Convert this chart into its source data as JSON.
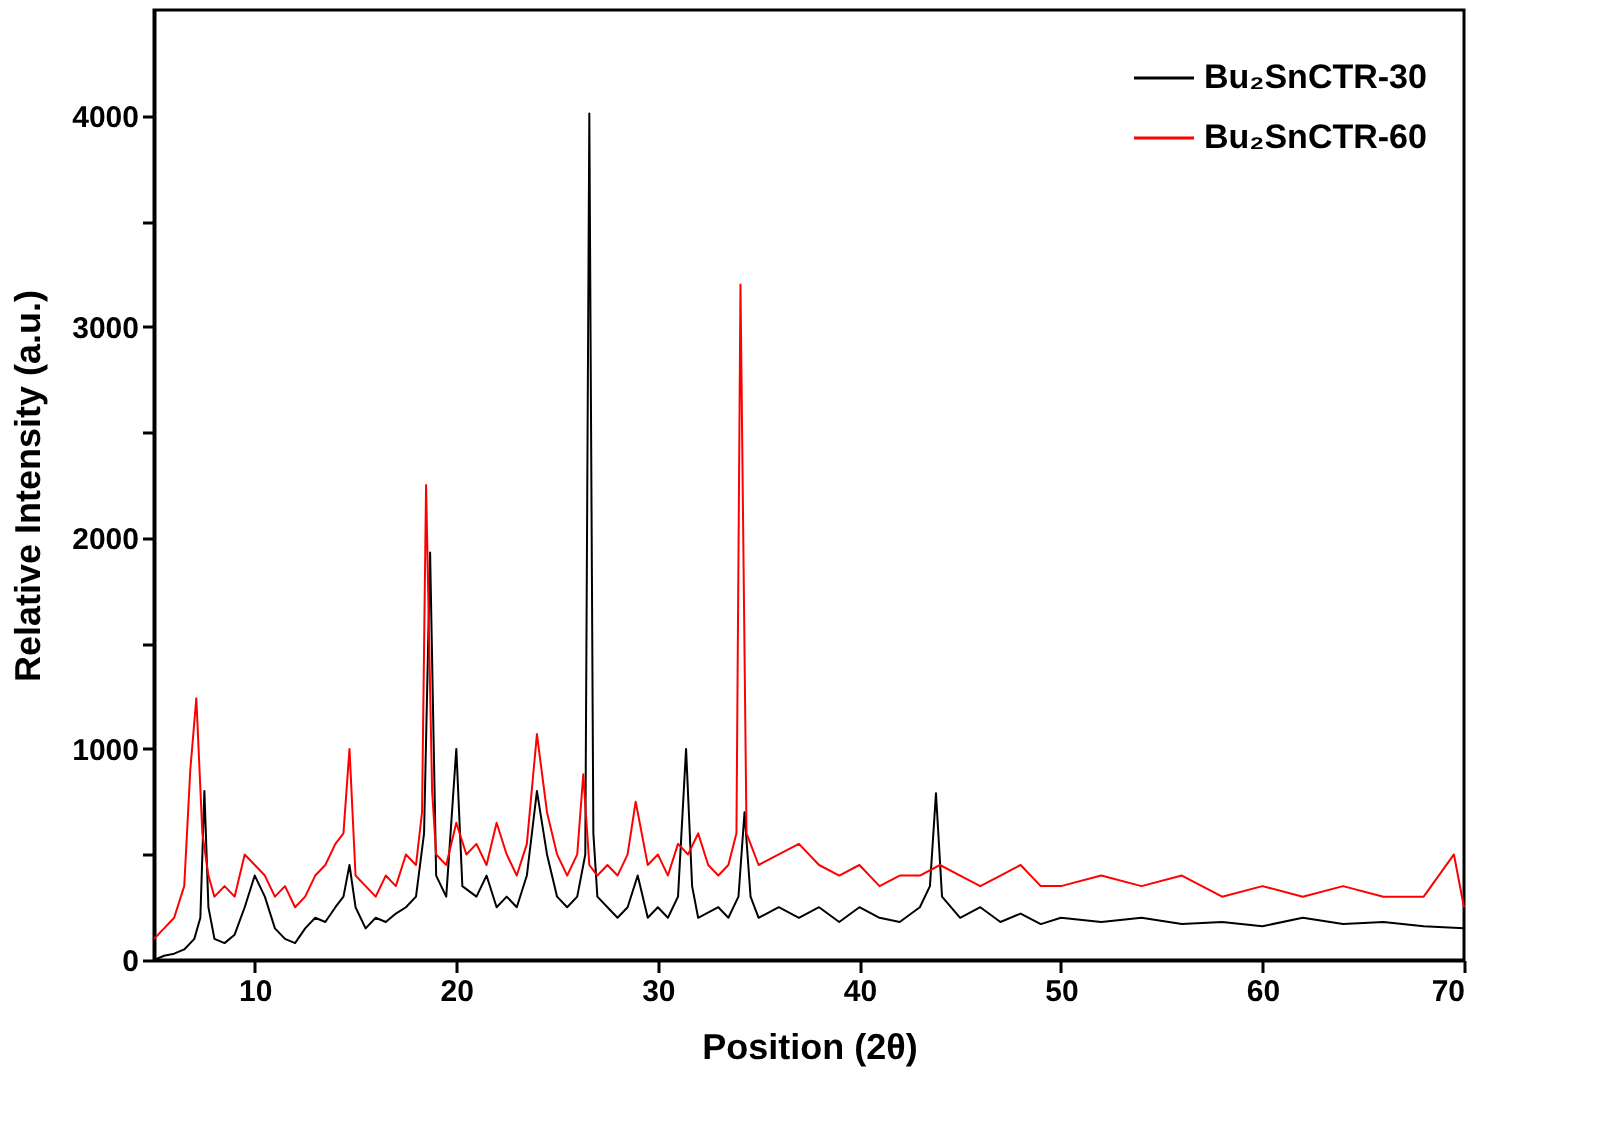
{
  "chart_data": {
    "type": "line",
    "xlabel": "Position (2θ)",
    "ylabel": "Relative Intensity (a.u.)",
    "xlim": [
      5,
      70
    ],
    "xticks": [
      10,
      20,
      30,
      40,
      50,
      60,
      70
    ],
    "ylim": [
      0,
      4500
    ],
    "yticks": [
      0,
      {
        "value": 500,
        "label": null
      },
      1000,
      {
        "value": 1500,
        "label": null
      },
      2000,
      {
        "value": 2500,
        "label": null
      },
      3000,
      {
        "value": 3500,
        "label": null
      },
      4000
    ],
    "grid": false,
    "legend": "top right",
    "marker": "none",
    "line_style": "solid",
    "series": [
      {
        "name": "Bu₂SnCTR-30",
        "color": "#000000",
        "x": [
          5,
          5.5,
          6,
          6.5,
          7,
          7.3,
          7.5,
          7.7,
          8,
          8.5,
          9,
          9.5,
          10,
          10.5,
          11,
          11.5,
          12,
          12.5,
          13,
          13.5,
          14,
          14.4,
          14.7,
          15,
          15.5,
          16,
          16.5,
          17,
          17.5,
          18,
          18.4,
          18.7,
          19,
          19.5,
          20,
          20.3,
          21,
          21.5,
          22,
          22.5,
          23,
          23.5,
          24,
          24.5,
          25,
          25.5,
          26,
          26.4,
          26.6,
          26.8,
          27,
          27.5,
          28,
          28.5,
          29,
          29.5,
          30,
          30.5,
          31,
          31.4,
          31.7,
          32,
          33,
          33.5,
          34,
          34.3,
          34.6,
          35,
          36,
          37,
          38,
          39,
          40,
          41,
          42,
          43,
          43.5,
          43.8,
          44.1,
          45,
          46,
          47,
          48,
          49,
          50,
          52,
          54,
          56,
          58,
          60,
          62,
          64,
          66,
          68,
          70
        ],
        "values": [
          0,
          20,
          30,
          50,
          100,
          200,
          800,
          250,
          100,
          80,
          120,
          250,
          400,
          300,
          150,
          100,
          80,
          150,
          200,
          180,
          250,
          300,
          450,
          250,
          150,
          200,
          180,
          220,
          250,
          300,
          600,
          1930,
          400,
          300,
          1000,
          350,
          300,
          400,
          250,
          300,
          250,
          400,
          800,
          500,
          300,
          250,
          300,
          500,
          4010,
          600,
          300,
          250,
          200,
          250,
          400,
          200,
          250,
          200,
          300,
          1000,
          350,
          200,
          250,
          200,
          300,
          700,
          300,
          200,
          250,
          200,
          250,
          180,
          250,
          200,
          180,
          250,
          350,
          790,
          300,
          200,
          250,
          180,
          220,
          170,
          200,
          180,
          200,
          170,
          180,
          160,
          200,
          170,
          180,
          160,
          150
        ]
      },
      {
        "name": "Bu₂SnCTR-60",
        "color": "#ff0000",
        "x": [
          5,
          5.5,
          6,
          6.5,
          6.8,
          7.1,
          7.4,
          7.7,
          8,
          8.5,
          9,
          9.5,
          10,
          10.5,
          11,
          11.5,
          12,
          12.5,
          13,
          13.5,
          14,
          14.4,
          14.7,
          15,
          15.5,
          16,
          16.5,
          17,
          17.5,
          18,
          18.3,
          18.5,
          18.8,
          19,
          19.5,
          20,
          20.5,
          21,
          21.5,
          22,
          22.5,
          23,
          23.5,
          24,
          24.5,
          25,
          25.5,
          26,
          26.3,
          26.6,
          27,
          27.5,
          28,
          28.5,
          28.9,
          29.5,
          30,
          30.5,
          31,
          31.5,
          32,
          32.5,
          33,
          33.5,
          33.9,
          34.1,
          34.4,
          35,
          36,
          37,
          38,
          39,
          40,
          41,
          42,
          43,
          44,
          45,
          46,
          47,
          48,
          49,
          50,
          52,
          54,
          56,
          58,
          60,
          62,
          64,
          66,
          68,
          69.5,
          70
        ],
        "values": [
          100,
          150,
          200,
          350,
          900,
          1240,
          600,
          400,
          300,
          350,
          300,
          500,
          450,
          400,
          300,
          350,
          250,
          300,
          400,
          450,
          550,
          600,
          1000,
          400,
          350,
          300,
          400,
          350,
          500,
          450,
          700,
          2250,
          800,
          500,
          450,
          650,
          500,
          550,
          450,
          650,
          500,
          400,
          550,
          1070,
          700,
          500,
          400,
          500,
          880,
          450,
          400,
          450,
          400,
          500,
          750,
          450,
          500,
          400,
          550,
          500,
          600,
          450,
          400,
          450,
          600,
          3200,
          600,
          450,
          500,
          550,
          450,
          400,
          450,
          350,
          400,
          400,
          450,
          400,
          350,
          400,
          450,
          350,
          350,
          400,
          350,
          400,
          300,
          350,
          300,
          350,
          300,
          300,
          500,
          250
        ]
      }
    ]
  }
}
